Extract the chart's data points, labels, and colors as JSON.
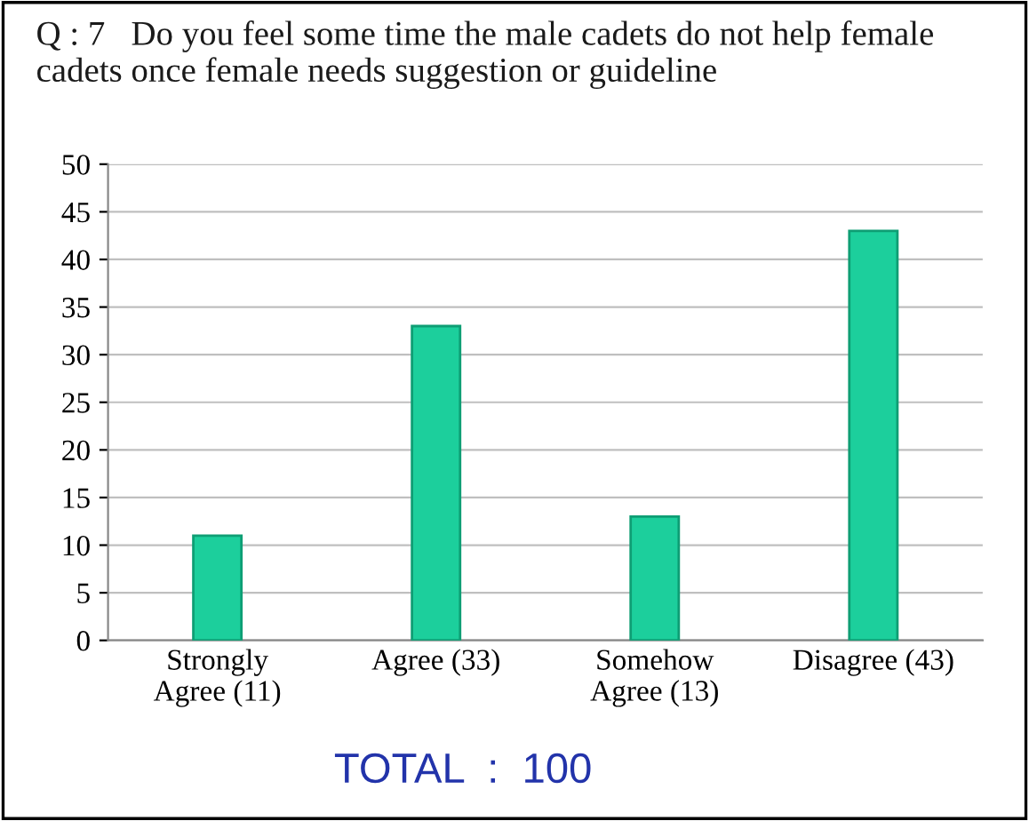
{
  "chart_data": {
    "type": "bar",
    "title": "Q : 7   Do you feel some time the male cadets do not help female cadets once female needs suggestion or guideline",
    "categories": [
      "Strongly\nAgree (11)",
      "Agree (33)",
      "Somehow\nAgree (13)",
      "Disagree (43)"
    ],
    "values": [
      11,
      33,
      13,
      43
    ],
    "color": "#1ccf9c",
    "ylim": [
      0,
      50
    ],
    "yticks": [
      0,
      5,
      10,
      15,
      20,
      25,
      30,
      35,
      40,
      45,
      50
    ],
    "grid": "y",
    "annotations": [
      "TOTAL  :  100"
    ]
  }
}
